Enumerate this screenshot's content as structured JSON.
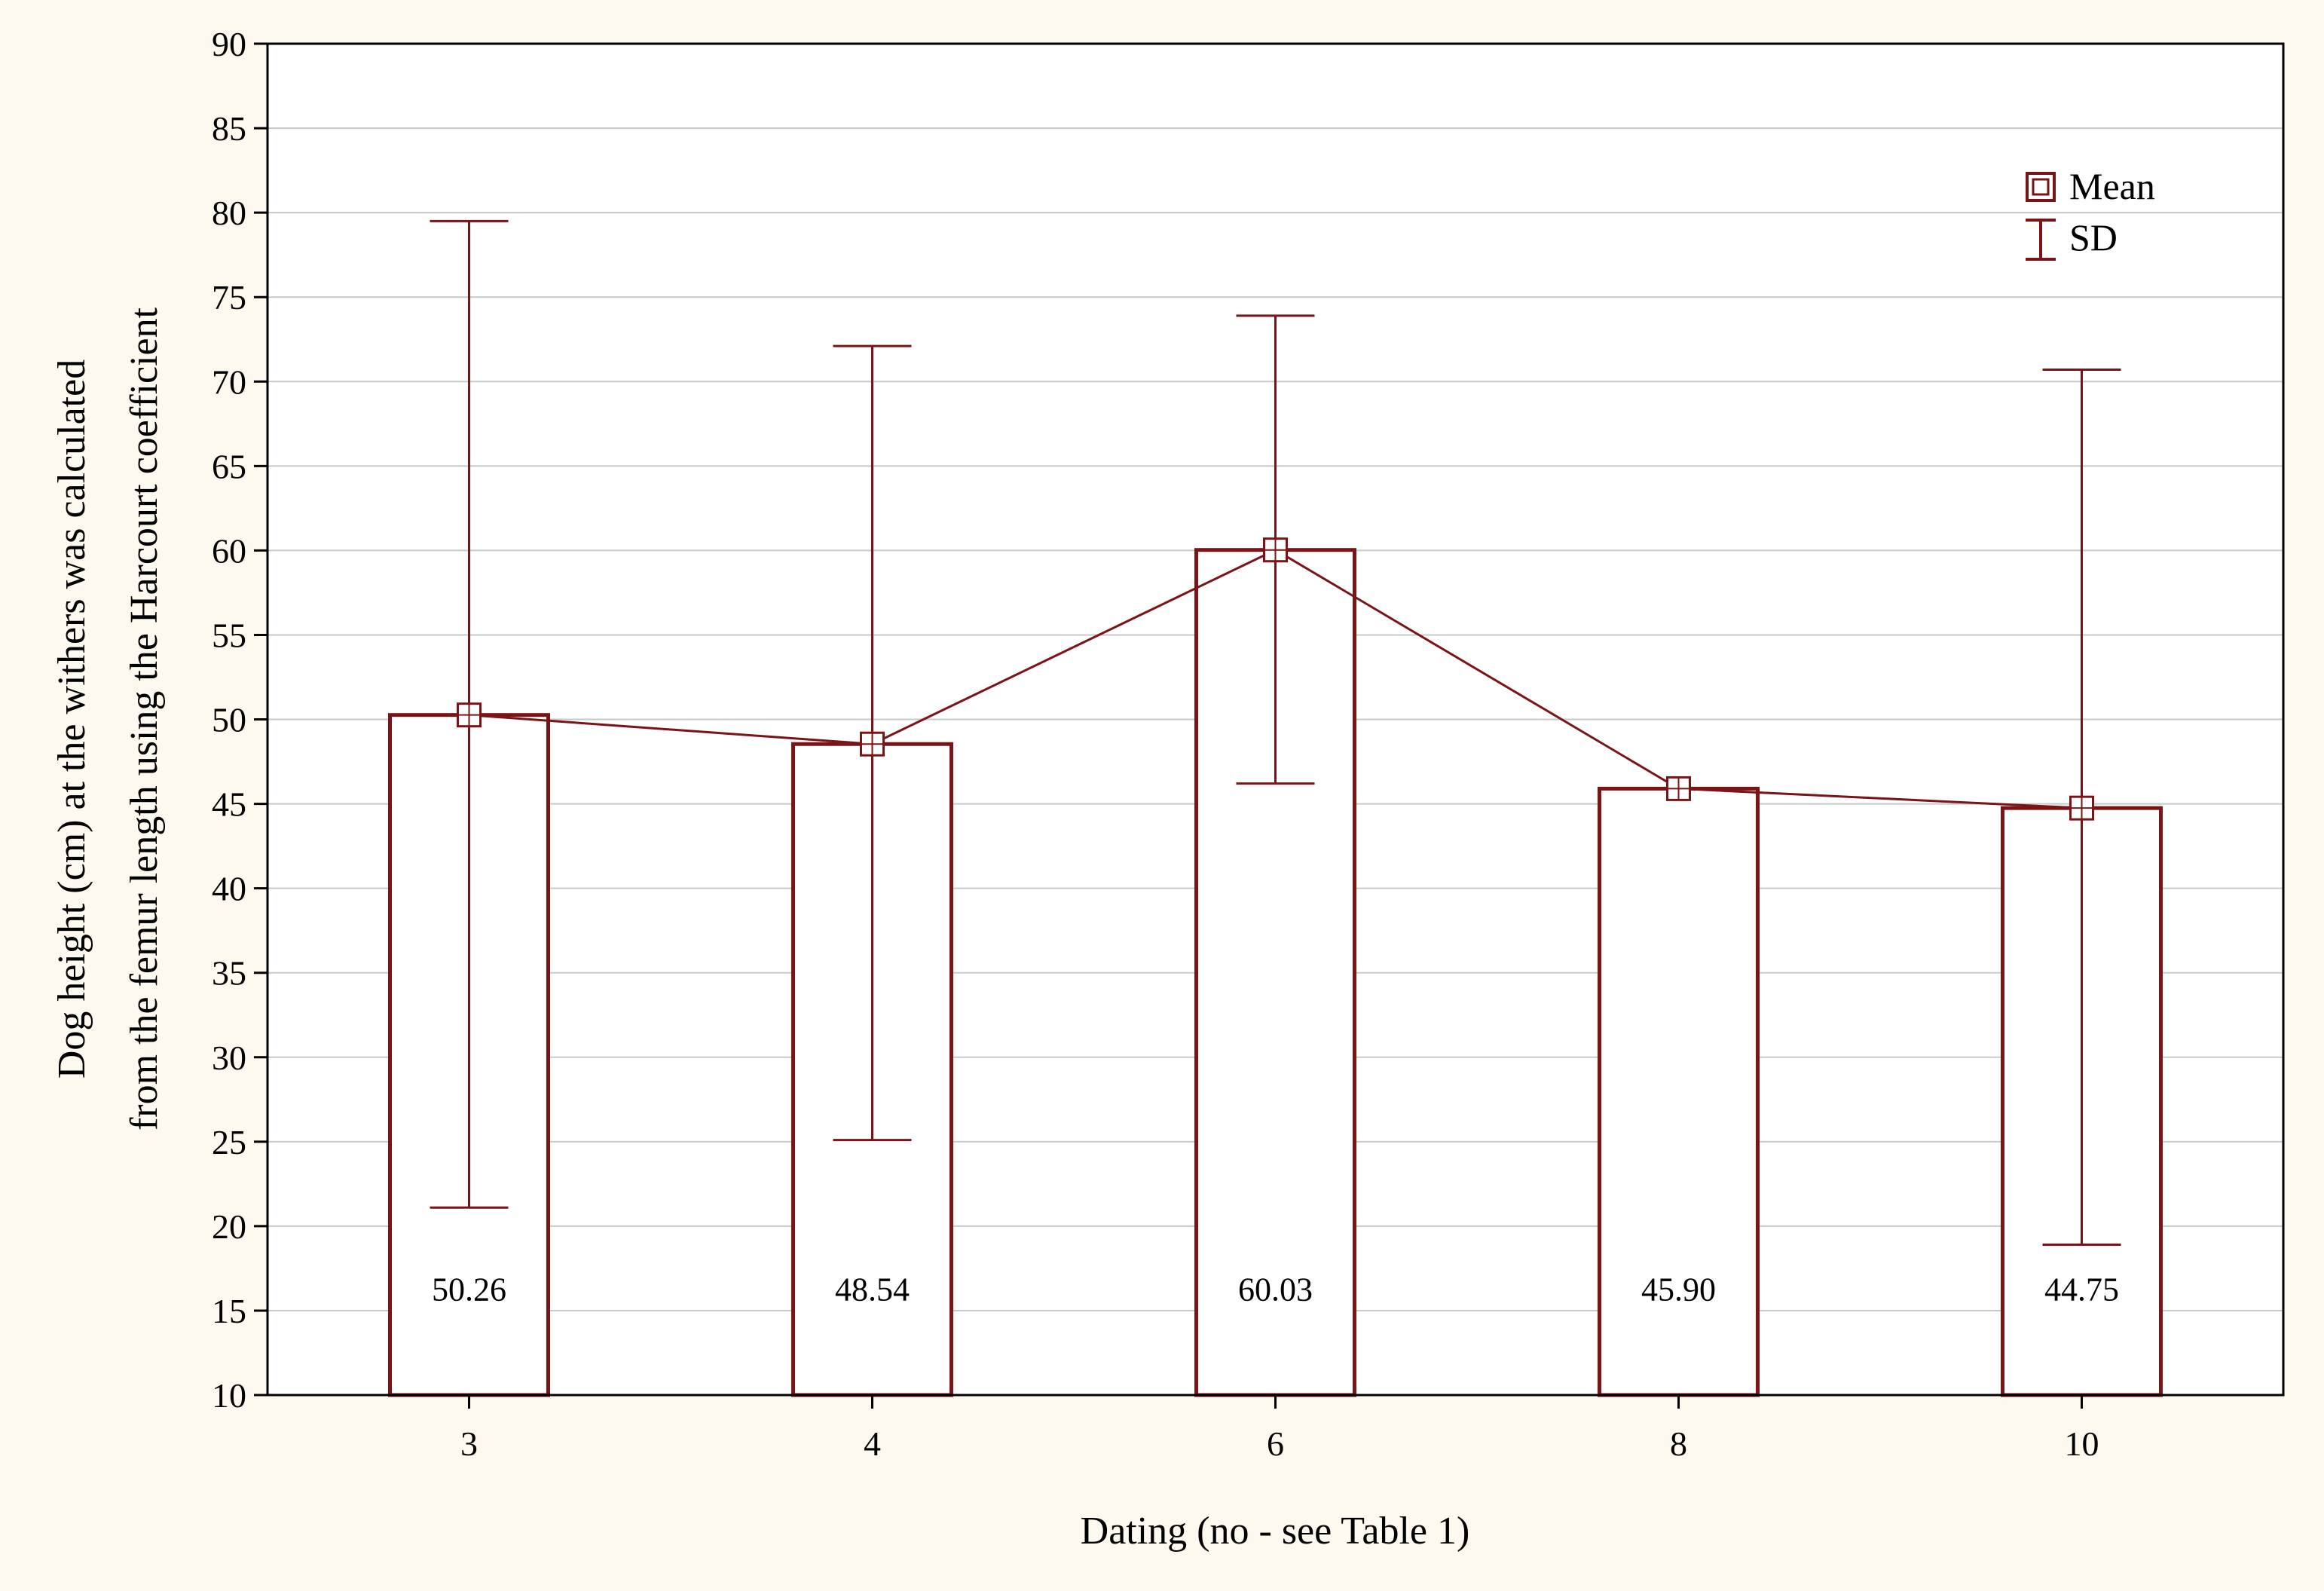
{
  "chart_data": {
    "type": "bar",
    "categories": [
      "3",
      "4",
      "6",
      "8",
      "10"
    ],
    "series": [
      {
        "name": "Mean",
        "values": [
          50.26,
          48.54,
          60.03,
          45.9,
          44.75
        ]
      }
    ],
    "sd_upper": [
      79.5,
      72.1,
      73.9,
      45.9,
      70.7
    ],
    "sd_lower": [
      21.1,
      25.1,
      46.2,
      45.9,
      18.9
    ],
    "data_labels": [
      "50.26",
      "48.54",
      "60.03",
      "45.90",
      "44.75"
    ],
    "xlabel": "Dating (no - see Table 1)",
    "ylabel_line1": "Dog height (cm) at the withers was calculated",
    "ylabel_line2": "from the femur length using the Harcourt coefficient",
    "ylim": [
      10,
      90
    ],
    "yticks": [
      10,
      15,
      20,
      25,
      30,
      35,
      40,
      45,
      50,
      55,
      60,
      65,
      70,
      75,
      80,
      85,
      90
    ],
    "grid": true,
    "legend": {
      "position": "top-right",
      "items": [
        "Mean",
        "SD"
      ]
    },
    "colors": {
      "series": "#7b1416",
      "plot_background": "#ffffff",
      "page_background": "#fdf9ef",
      "grid": "#c8c8c8"
    }
  }
}
